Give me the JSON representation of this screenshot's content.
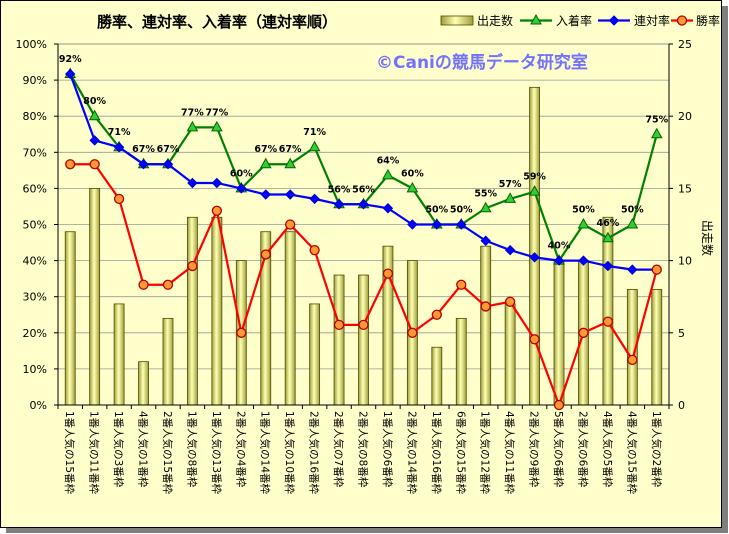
{
  "chart_data": {
    "type": "bar",
    "title": "勝率、連対率、入着率（連対率順）",
    "watermark": "©Caniの競馬データ研究室",
    "watermark_color": "#7272FF",
    "background": "#FFFFCC",
    "grid": true,
    "legend": "top-right",
    "categories": [
      "1番人気の15番枠",
      "1番人気の11番枠",
      "1番人気の3番枠",
      "4番人気の1番枠",
      "2番人気の15番枠",
      "1番人気の8番枠",
      "1番人気の13番枠",
      "2番人気の4番枠",
      "1番人気の14番枠",
      "1番人気の10番枠",
      "2番人気の16番枠",
      "2番人気の7番枠",
      "2番人気の8番枠",
      "1番人気の6番枠",
      "2番人気の14番枠",
      "1番人気の16番枠",
      "6番人気の15番枠",
      "1番人気の12番枠",
      "4番人気の11番枠",
      "2番人気の9番枠",
      "5番人気の6番枠",
      "2番人気の6番枠",
      "4番人気の5番枠",
      "4番人気の15番枠",
      "1番人気の2番枠"
    ],
    "y_axis": {
      "range": [
        0,
        100
      ],
      "tick_labels": [
        "0%",
        "10%",
        "20%",
        "30%",
        "40%",
        "50%",
        "60%",
        "70%",
        "80%",
        "90%",
        "100%"
      ]
    },
    "y2_axis": {
      "label": "出走数",
      "range": [
        0,
        25
      ],
      "tick_labels": [
        "0",
        "5",
        "10",
        "15",
        "20",
        "25"
      ]
    },
    "series": [
      {
        "name": "出走数",
        "type": "bar",
        "secondary_axis": true,
        "color": "#FFFFB3",
        "border": "#4D4D00",
        "values": [
          12,
          15,
          7,
          3,
          6,
          13,
          13,
          10,
          12,
          12,
          7,
          9,
          9,
          11,
          10,
          4,
          6,
          11,
          7,
          22,
          10,
          10,
          13,
          8,
          8
        ]
      },
      {
        "name": "入着率",
        "type": "line",
        "secondary_axis": false,
        "color": "#008000",
        "marker": "triangle",
        "marker_fill": "#33CC33",
        "marker_border": "#006600",
        "values": [
          91.7,
          80.0,
          71.4,
          66.7,
          66.7,
          76.9,
          76.9,
          60.0,
          66.7,
          66.7,
          71.4,
          55.6,
          55.6,
          63.6,
          60.0,
          50.0,
          50.0,
          54.5,
          57.1,
          59.1,
          40.0,
          50.0,
          46.2,
          50.0,
          75.0
        ],
        "labels": [
          "92%",
          "80%",
          "71%",
          "67%",
          "67%",
          "77%",
          "77%",
          "60%",
          "67%",
          "67%",
          "71%",
          "56%",
          "56%",
          "64%",
          "60%",
          "50%",
          "50%",
          "55%",
          "57%",
          "59%",
          "40%",
          "50%",
          "46%",
          "50%",
          "75%"
        ]
      },
      {
        "name": "連対率",
        "type": "line",
        "secondary_axis": false,
        "color": "#0000FF",
        "marker": "diamond",
        "marker_fill": "#0000FF",
        "marker_border": "#0000CC",
        "values": [
          91.7,
          73.3,
          71.4,
          66.7,
          66.7,
          61.5,
          61.5,
          60.0,
          58.3,
          58.3,
          57.1,
          55.6,
          55.6,
          54.5,
          50.0,
          50.0,
          50.0,
          45.5,
          42.9,
          40.9,
          40.0,
          40.0,
          38.5,
          37.5,
          37.5
        ]
      },
      {
        "name": "勝率",
        "type": "line",
        "secondary_axis": false,
        "color": "#FF0000",
        "marker": "circle",
        "marker_fill": "#FF9933",
        "marker_border": "#B30000",
        "values": [
          66.7,
          66.7,
          57.1,
          33.3,
          33.3,
          38.5,
          53.8,
          20.0,
          41.7,
          50.0,
          42.9,
          22.2,
          22.2,
          36.4,
          20.0,
          25.0,
          33.3,
          27.3,
          28.6,
          18.2,
          0.0,
          20.0,
          23.1,
          12.5,
          37.5
        ]
      }
    ]
  }
}
